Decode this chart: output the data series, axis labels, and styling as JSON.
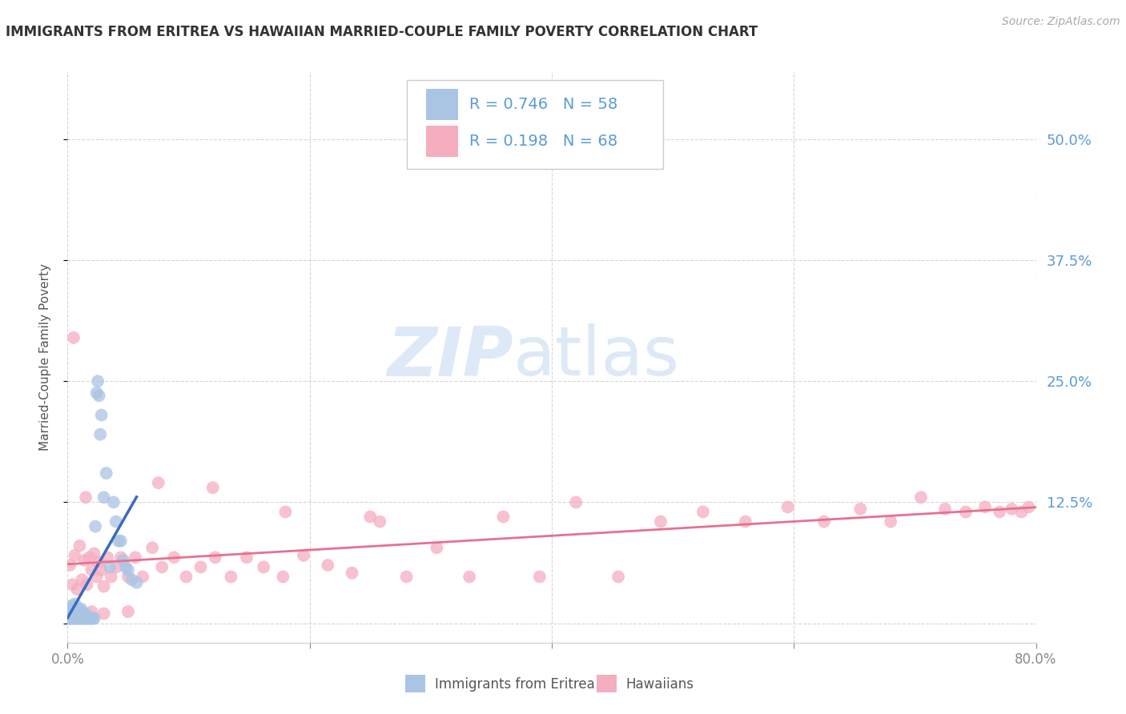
{
  "title": "IMMIGRANTS FROM ERITREA VS HAWAIIAN MARRIED-COUPLE FAMILY POVERTY CORRELATION CHART",
  "source": "Source: ZipAtlas.com",
  "ylabel": "Married-Couple Family Poverty",
  "xlim": [
    0,
    0.8
  ],
  "ylim": [
    -0.02,
    0.57
  ],
  "yticks_right": [
    0.125,
    0.25,
    0.375,
    0.5
  ],
  "xticks": [
    0.0,
    0.2,
    0.4,
    0.6,
    0.8
  ],
  "legend_label1": "Immigrants from Eritrea",
  "legend_label2": "Hawaiians",
  "R1": "0.746",
  "N1": "58",
  "R2": "0.198",
  "N2": "68",
  "blue_color": "#aac4e4",
  "blue_line_color": "#3a6bbf",
  "pink_color": "#f5adc0",
  "pink_line_color": "#e87090",
  "axis_label_color": "#5b9bd5",
  "legend_text_color": "#333333",
  "watermark_color": "#dde9f6",
  "background_color": "#ffffff",
  "blue_scatter_x": [
    0.0005,
    0.001,
    0.001,
    0.0015,
    0.002,
    0.002,
    0.003,
    0.003,
    0.003,
    0.004,
    0.004,
    0.005,
    0.005,
    0.005,
    0.006,
    0.006,
    0.006,
    0.007,
    0.007,
    0.008,
    0.008,
    0.009,
    0.009,
    0.01,
    0.01,
    0.011,
    0.011,
    0.012,
    0.012,
    0.013,
    0.014,
    0.015,
    0.015,
    0.016,
    0.017,
    0.018,
    0.019,
    0.02,
    0.021,
    0.022,
    0.023,
    0.024,
    0.025,
    0.026,
    0.027,
    0.028,
    0.03,
    0.032,
    0.035,
    0.038,
    0.04,
    0.042,
    0.044,
    0.046,
    0.048,
    0.05,
    0.053,
    0.057
  ],
  "blue_scatter_y": [
    0.005,
    0.005,
    0.01,
    0.008,
    0.005,
    0.015,
    0.005,
    0.01,
    0.018,
    0.005,
    0.012,
    0.005,
    0.01,
    0.018,
    0.005,
    0.01,
    0.02,
    0.005,
    0.012,
    0.005,
    0.015,
    0.005,
    0.015,
    0.005,
    0.012,
    0.005,
    0.015,
    0.005,
    0.012,
    0.005,
    0.005,
    0.005,
    0.01,
    0.005,
    0.005,
    0.005,
    0.005,
    0.005,
    0.005,
    0.005,
    0.1,
    0.238,
    0.25,
    0.235,
    0.195,
    0.215,
    0.13,
    0.155,
    0.058,
    0.125,
    0.105,
    0.085,
    0.085,
    0.065,
    0.058,
    0.055,
    0.045,
    0.042
  ],
  "pink_scatter_x": [
    0.002,
    0.004,
    0.006,
    0.008,
    0.01,
    0.012,
    0.014,
    0.016,
    0.018,
    0.02,
    0.022,
    0.024,
    0.026,
    0.028,
    0.03,
    0.033,
    0.036,
    0.04,
    0.044,
    0.05,
    0.056,
    0.062,
    0.07,
    0.078,
    0.088,
    0.098,
    0.11,
    0.122,
    0.135,
    0.148,
    0.162,
    0.178,
    0.195,
    0.215,
    0.235,
    0.258,
    0.28,
    0.305,
    0.332,
    0.36,
    0.39,
    0.42,
    0.455,
    0.49,
    0.525,
    0.56,
    0.595,
    0.625,
    0.655,
    0.68,
    0.705,
    0.725,
    0.742,
    0.758,
    0.77,
    0.78,
    0.788,
    0.794,
    0.005,
    0.01,
    0.015,
    0.02,
    0.03,
    0.05,
    0.075,
    0.12,
    0.18,
    0.25
  ],
  "pink_scatter_y": [
    0.06,
    0.04,
    0.07,
    0.035,
    0.08,
    0.045,
    0.065,
    0.04,
    0.068,
    0.055,
    0.072,
    0.048,
    0.063,
    0.055,
    0.038,
    0.068,
    0.048,
    0.058,
    0.068,
    0.048,
    0.068,
    0.048,
    0.078,
    0.058,
    0.068,
    0.048,
    0.058,
    0.068,
    0.048,
    0.068,
    0.058,
    0.048,
    0.07,
    0.06,
    0.052,
    0.105,
    0.048,
    0.078,
    0.048,
    0.11,
    0.048,
    0.125,
    0.048,
    0.105,
    0.115,
    0.105,
    0.12,
    0.105,
    0.118,
    0.105,
    0.13,
    0.118,
    0.115,
    0.12,
    0.115,
    0.118,
    0.115,
    0.12,
    0.295,
    0.01,
    0.13,
    0.012,
    0.01,
    0.012,
    0.145,
    0.14,
    0.115,
    0.11
  ]
}
